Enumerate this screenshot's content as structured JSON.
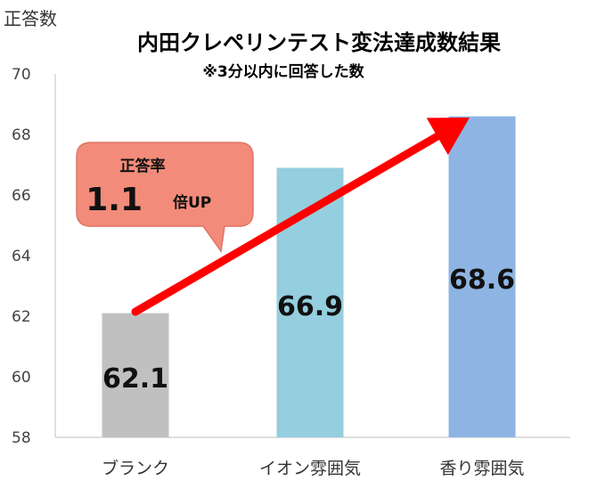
{
  "chart_data": {
    "type": "bar",
    "title": "内田クレペリンテスト変法達成数結果",
    "subtitle": "※3分以内に回答した数",
    "ylabel": "正答数",
    "xlabel": "",
    "ylim": [
      58,
      70
    ],
    "yticks": [
      58,
      60,
      62,
      64,
      66,
      68,
      70
    ],
    "categories": [
      "ブランク",
      "イオン雰囲気",
      "香り雰囲気"
    ],
    "values": [
      62.1,
      66.9,
      68.6
    ],
    "data_labels": [
      "62.1",
      "66.9",
      "68.6"
    ],
    "bar_colors": [
      "#c0c0c0",
      "#95cede",
      "#8eb4e3"
    ],
    "grid": false,
    "legend": "none",
    "callout": {
      "label": "正答率",
      "value": "1.1",
      "suffix": "倍UP",
      "color": "#f28b7a"
    },
    "arrow_color": "#ff0000"
  }
}
